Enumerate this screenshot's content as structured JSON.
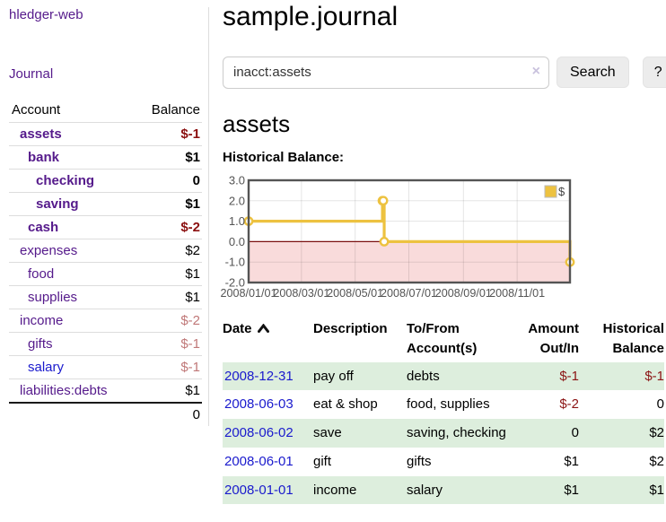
{
  "colors": {
    "link_purple": "#551a8b",
    "link_blue": "#1a1acd",
    "negative_red": "#8b0f0f",
    "negative_muted": "#c07878",
    "row_green": "#ddeedd",
    "chart_line_gold": "#edc240",
    "chart_negative_fill": "#f9dbdb",
    "chart_zero_line": "#7c1010",
    "chart_border": "#545454",
    "chart_grid": "#e2e2e2"
  },
  "sidebar": {
    "brand": "hledger-web",
    "journal_link": "Journal",
    "account_table": {
      "headers": {
        "account": "Account",
        "balance": "Balance"
      },
      "rows": [
        {
          "account": "assets",
          "balance": "$-1",
          "level": 1,
          "bold": true,
          "balance_color": "negative"
        },
        {
          "account": "bank",
          "balance": "$1",
          "level": 2,
          "bold": true,
          "balance_color": "normal"
        },
        {
          "account": "checking",
          "balance": "0",
          "level": 3,
          "bold": true,
          "balance_color": "normal"
        },
        {
          "account": "saving",
          "balance": "$1",
          "level": 3,
          "bold": true,
          "balance_color": "normal"
        },
        {
          "account": "cash",
          "balance": "$-2",
          "level": 2,
          "bold": true,
          "balance_color": "negative"
        },
        {
          "account": "expenses",
          "balance": "$2",
          "level": 1,
          "bold": false,
          "balance_color": "normal"
        },
        {
          "account": "food",
          "balance": "$1",
          "level": 2,
          "bold": false,
          "balance_color": "normal"
        },
        {
          "account": "supplies",
          "balance": "$1",
          "level": 2,
          "bold": false,
          "balance_color": "normal"
        },
        {
          "account": "income",
          "balance": "$-2",
          "level": 1,
          "bold": false,
          "balance_color": "negative_muted"
        },
        {
          "account": "gifts",
          "balance": "$-1",
          "level": 2,
          "bold": false,
          "balance_color": "negative_muted"
        },
        {
          "account": "salary",
          "balance": "$-1",
          "level": 2,
          "bold": false,
          "balance_color": "negative_muted",
          "link_color": "blue"
        },
        {
          "account": "liabilities:debts",
          "balance": "$1",
          "level": 1,
          "bold": false,
          "balance_color": "normal"
        }
      ],
      "total": "0"
    }
  },
  "header": {
    "title": "sample.journal",
    "search": {
      "value": "inacct:assets",
      "clear_icon": "×",
      "button_label": "Search",
      "help_label": "?"
    }
  },
  "main": {
    "account_heading": "assets",
    "chart_label": "Historical Balance:"
  },
  "chart_data": {
    "type": "line",
    "step": "after",
    "title": "Historical Balance",
    "legend": {
      "label": "$",
      "position": "top-right"
    },
    "series": [
      {
        "name": "$",
        "points": [
          {
            "x": "2008-01-01",
            "y": 1
          },
          {
            "x": "2008-06-01",
            "y": 2
          },
          {
            "x": "2008-06-02",
            "y": 2
          },
          {
            "x": "2008-06-03",
            "y": 0
          },
          {
            "x": "2008-12-31",
            "y": -1
          }
        ]
      }
    ],
    "x_ticks": [
      "2008/01/01",
      "2008/03/01",
      "2008/05/01",
      "2008/07/01",
      "2008/09/01",
      "2008/11/01"
    ],
    "y_ticks": [
      "3.0",
      "2.0",
      "1.0",
      "0.0",
      "-1.0",
      "-2.0"
    ],
    "ylim": [
      -2,
      3
    ],
    "xlim": [
      "2008-01-01",
      "2008-12-31"
    ],
    "grid": true,
    "negative_region_shaded": true
  },
  "register": {
    "headers": {
      "date": "Date",
      "description": "Description",
      "accounts": "To/From Account(s)",
      "amount": "Amount Out/In",
      "balance": "Historical Balance"
    },
    "sort": {
      "column": "date",
      "direction": "asc"
    },
    "rows": [
      {
        "date": "2008-12-31",
        "description": "pay off",
        "accounts": "debts",
        "amount": "$-1",
        "amount_negative": true,
        "balance": "$-1",
        "balance_negative": true
      },
      {
        "date": "2008-06-03",
        "description": "eat & shop",
        "accounts": "food, supplies",
        "amount": "$-2",
        "amount_negative": true,
        "balance": "0",
        "balance_negative": false
      },
      {
        "date": "2008-06-02",
        "description": "save",
        "accounts": "saving, checking",
        "amount": "0",
        "amount_negative": false,
        "balance": "$2",
        "balance_negative": false
      },
      {
        "date": "2008-06-01",
        "description": "gift",
        "accounts": "gifts",
        "amount": "$1",
        "amount_negative": false,
        "balance": "$2",
        "balance_negative": false
      },
      {
        "date": "2008-01-01",
        "description": "income",
        "accounts": "salary",
        "amount": "$1",
        "amount_negative": false,
        "balance": "$1",
        "balance_negative": false
      }
    ]
  }
}
